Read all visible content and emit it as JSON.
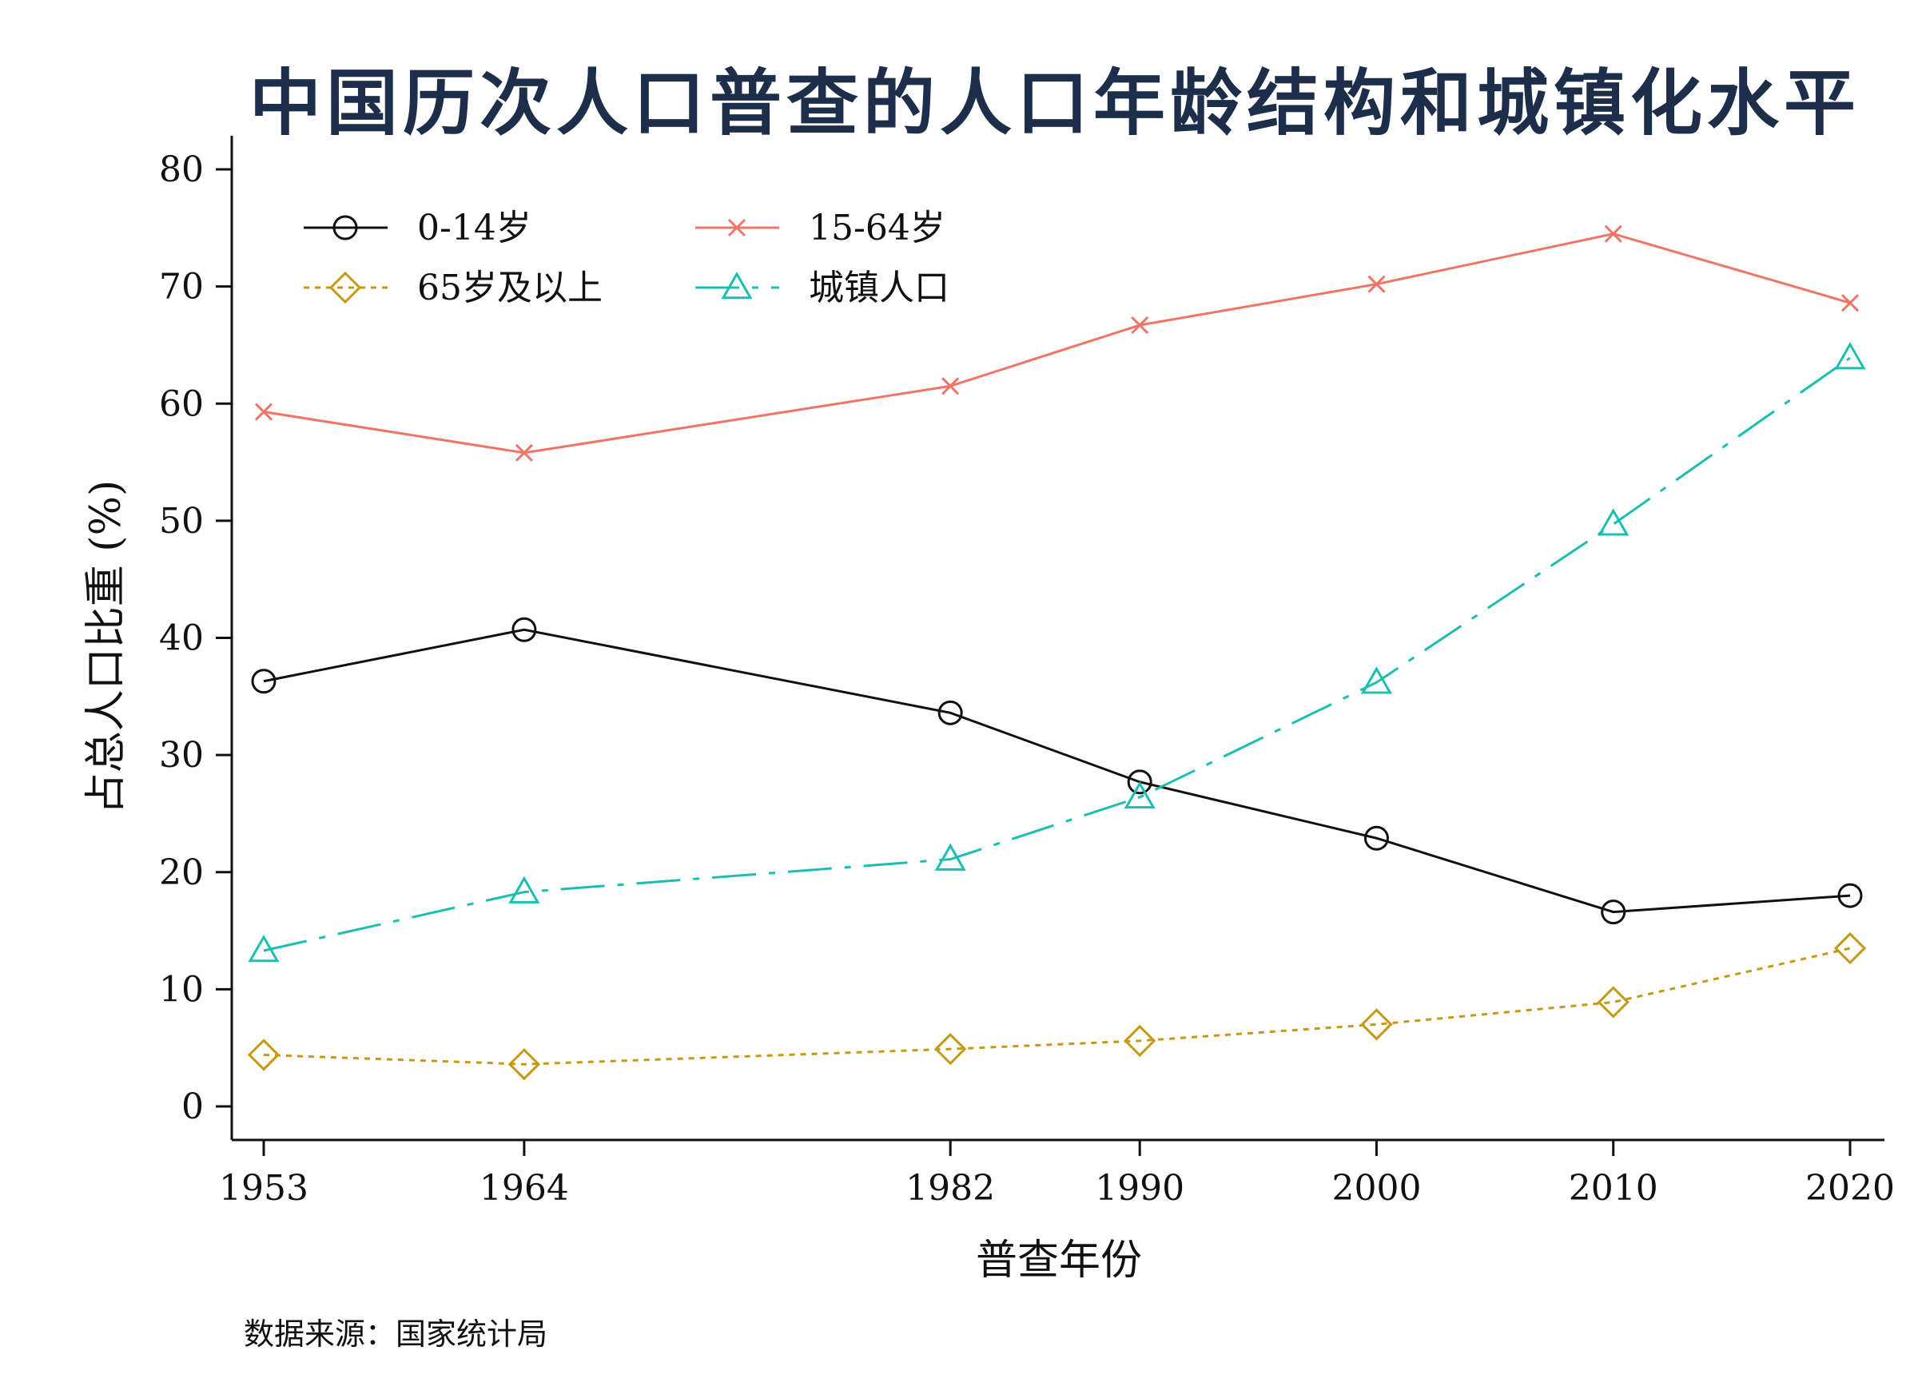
{
  "chart_data": {
    "type": "line",
    "title": "中国历次人口普查的人口年龄结构和城镇化水平",
    "xlabel": "普查年份",
    "ylabel": "占总人口比重 (%)",
    "x": [
      1953,
      1964,
      1982,
      1990,
      2000,
      2010,
      2020
    ],
    "x_tick_labels": [
      "1953",
      "1964",
      "1982",
      "1990",
      "2000",
      "2010",
      "2020"
    ],
    "ylim": [
      0,
      80
    ],
    "y_ticks": [
      0,
      10,
      20,
      30,
      40,
      50,
      60,
      70,
      80
    ],
    "y_tick_labels": [
      "0",
      "10",
      "20",
      "30",
      "40",
      "50",
      "60",
      "70",
      "80"
    ],
    "grid": false,
    "legend_position": "top-left",
    "series": [
      {
        "name": "0-14岁",
        "color": "#111111",
        "marker": "circle",
        "dash": "solid",
        "values": [
          36.3,
          40.7,
          33.6,
          27.7,
          22.9,
          16.6,
          18.0
        ]
      },
      {
        "name": "15-64岁",
        "color": "#ef7568",
        "marker": "x",
        "dash": "solid",
        "values": [
          59.3,
          55.8,
          61.5,
          66.7,
          70.2,
          74.5,
          68.6
        ]
      },
      {
        "name": "65岁及以上",
        "color": "#c49a12",
        "marker": "diamond",
        "dash": "dotted",
        "values": [
          4.4,
          3.6,
          4.9,
          5.6,
          7.0,
          8.9,
          13.5
        ]
      },
      {
        "name": "城镇人口",
        "color": "#1bbfb0",
        "marker": "triangle",
        "dash": "dashdot",
        "values": [
          13.3,
          18.3,
          21.1,
          26.4,
          36.2,
          49.7,
          63.9
        ]
      }
    ],
    "source_note": "数据来源：国家统计局"
  }
}
